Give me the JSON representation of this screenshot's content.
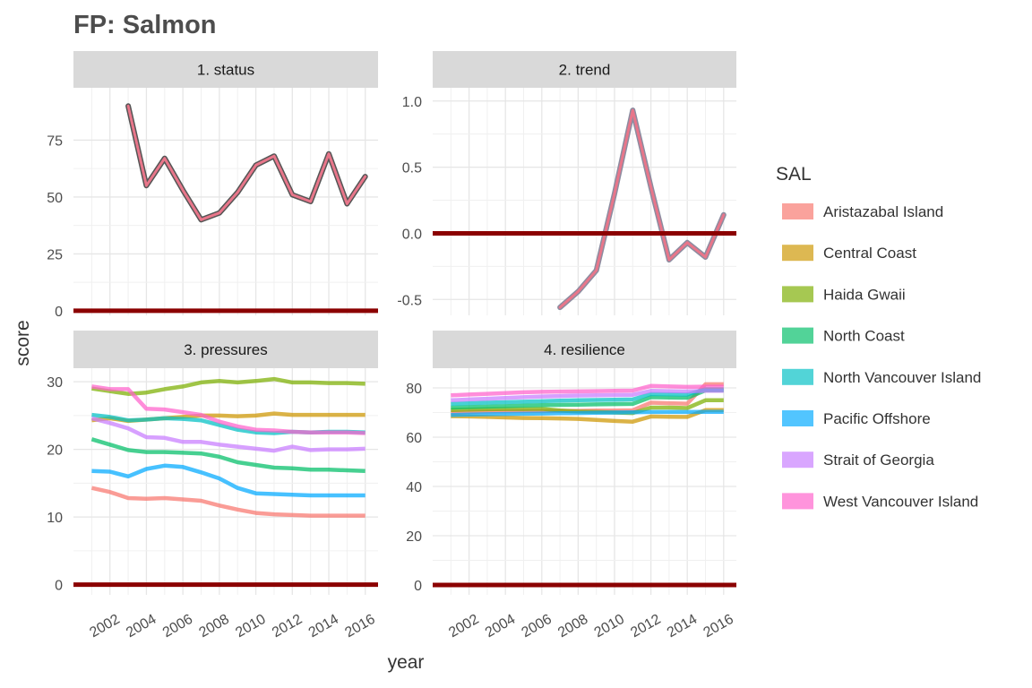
{
  "chart_data": {
    "title": "FP: Salmon",
    "xlabel": "year",
    "ylabel": "score",
    "legend": {
      "title": "SAL",
      "position": "right",
      "entries": [
        {
          "name": "Aristazabal Island",
          "color": "#F8766D"
        },
        {
          "name": "Central Coast",
          "color": "#CD9600"
        },
        {
          "name": "Haida Gwaii",
          "color": "#7CAE00"
        },
        {
          "name": "North Coast",
          "color": "#00BE67"
        },
        {
          "name": "North Vancouver Island",
          "color": "#00BFC4"
        },
        {
          "name": "Pacific Offshore",
          "color": "#00A9FF"
        },
        {
          "name": "Strait of Georgia",
          "color": "#C77CFF"
        },
        {
          "name": "West Vancouver Island",
          "color": "#FF61CC"
        }
      ]
    },
    "x_ticks": [
      "2002",
      "2004",
      "2006",
      "2008",
      "2010",
      "2012",
      "2014",
      "2016"
    ],
    "x_range": [
      2000.0,
      2016.7
    ],
    "reference_line": {
      "y": 0,
      "color": "#8B0000"
    },
    "panels": [
      {
        "label": "1. status",
        "type": "line",
        "ylim": [
          -2,
          98
        ],
        "y_ticks": [
          0,
          25,
          50,
          75
        ],
        "series": [
          {
            "name": "",
            "color": "#E8768A",
            "outline": "#555555",
            "x": [
              2003,
              2004,
              2005,
              2006,
              2007,
              2008,
              2009,
              2010,
              2011,
              2012,
              2013,
              2014,
              2015,
              2016
            ],
            "y": [
              90,
              55,
              67,
              53,
              40,
              43,
              52,
              64,
              68,
              51,
              48,
              69,
              47,
              59
            ]
          }
        ]
      },
      {
        "label": "2. trend",
        "type": "line",
        "ylim": [
          -0.62,
          1.1
        ],
        "y_ticks": [
          -0.5,
          0.0,
          0.5,
          1.0
        ],
        "series": [
          {
            "name": "",
            "color": "#E8768A",
            "outline": "#8C8CA0",
            "x": [
              2007,
              2008,
              2009,
              2010,
              2011,
              2012,
              2013,
              2014,
              2015,
              2016
            ],
            "y": [
              -0.56,
              -0.44,
              -0.28,
              0.3,
              0.93,
              0.35,
              -0.2,
              -0.07,
              -0.18,
              0.14
            ]
          }
        ]
      },
      {
        "label": "3. pressures",
        "type": "line",
        "ylim": [
          -1.5,
          32
        ],
        "y_ticks": [
          0,
          10,
          20,
          30
        ],
        "series": [
          {
            "name": "Aristazabal Island",
            "color": "#F8766D",
            "x": [
              2001,
              2002,
              2003,
              2004,
              2005,
              2006,
              2007,
              2008,
              2009,
              2010,
              2011,
              2012,
              2013,
              2014,
              2015,
              2016
            ],
            "y": [
              14.3,
              13.7,
              12.8,
              12.7,
              12.8,
              12.6,
              12.4,
              11.7,
              11.1,
              10.6,
              10.4,
              10.3,
              10.2,
              10.2,
              10.2,
              10.2
            ]
          },
          {
            "name": "Central Coast",
            "color": "#CD9600",
            "x": [
              2001,
              2002,
              2003,
              2004,
              2005,
              2006,
              2007,
              2008,
              2009,
              2010,
              2011,
              2012,
              2013,
              2014,
              2015,
              2016
            ],
            "y": [
              24.3,
              24.6,
              24.2,
              24.4,
              24.6,
              24.8,
              25.0,
              25.0,
              24.9,
              25.0,
              25.3,
              25.1,
              25.1,
              25.1,
              25.1,
              25.1
            ]
          },
          {
            "name": "Haida Gwaii",
            "color": "#7CAE00",
            "x": [
              2001,
              2002,
              2003,
              2004,
              2005,
              2006,
              2007,
              2008,
              2009,
              2010,
              2011,
              2012,
              2013,
              2014,
              2015,
              2016
            ],
            "y": [
              29.0,
              28.6,
              28.2,
              28.4,
              28.9,
              29.3,
              29.9,
              30.1,
              29.9,
              30.1,
              30.4,
              29.9,
              29.9,
              29.8,
              29.8,
              29.7
            ]
          },
          {
            "name": "North Coast",
            "color": "#00BE67",
            "x": [
              2001,
              2002,
              2003,
              2004,
              2005,
              2006,
              2007,
              2008,
              2009,
              2010,
              2011,
              2012,
              2013,
              2014,
              2015,
              2016
            ],
            "y": [
              21.5,
              20.7,
              19.9,
              19.6,
              19.6,
              19.5,
              19.4,
              18.9,
              18.1,
              17.7,
              17.3,
              17.2,
              17.0,
              17.0,
              16.9,
              16.8
            ]
          },
          {
            "name": "North Vancouver Island",
            "color": "#00BFC4",
            "x": [
              2001,
              2002,
              2003,
              2004,
              2005,
              2006,
              2007,
              2008,
              2009,
              2010,
              2011,
              2012,
              2013,
              2014,
              2015,
              2016
            ],
            "y": [
              25.1,
              24.8,
              24.3,
              24.4,
              24.6,
              24.5,
              24.3,
              23.6,
              22.9,
              22.5,
              22.4,
              22.6,
              22.5,
              22.6,
              22.6,
              22.5
            ]
          },
          {
            "name": "Pacific Offshore",
            "color": "#00A9FF",
            "x": [
              2001,
              2002,
              2003,
              2004,
              2005,
              2006,
              2007,
              2008,
              2009,
              2010,
              2011,
              2012,
              2013,
              2014,
              2015,
              2016
            ],
            "y": [
              16.8,
              16.7,
              16.0,
              17.1,
              17.6,
              17.4,
              16.6,
              15.7,
              14.3,
              13.5,
              13.4,
              13.3,
              13.2,
              13.2,
              13.2,
              13.2
            ]
          },
          {
            "name": "Strait of Georgia",
            "color": "#C77CFF",
            "x": [
              2001,
              2002,
              2003,
              2004,
              2005,
              2006,
              2007,
              2008,
              2009,
              2010,
              2011,
              2012,
              2013,
              2014,
              2015,
              2016
            ],
            "y": [
              24.6,
              23.9,
              23.1,
              21.8,
              21.7,
              21.1,
              21.1,
              20.7,
              20.4,
              20.1,
              19.8,
              20.4,
              19.9,
              20.0,
              20.0,
              20.1
            ]
          },
          {
            "name": "West Vancouver Island",
            "color": "#FF61CC",
            "x": [
              2001,
              2002,
              2003,
              2004,
              2005,
              2006,
              2007,
              2008,
              2009,
              2010,
              2011,
              2012,
              2013,
              2014,
              2015,
              2016
            ],
            "y": [
              29.3,
              28.9,
              28.9,
              26.0,
              25.9,
              25.5,
              25.1,
              24.1,
              23.4,
              22.9,
              22.8,
              22.6,
              22.5,
              22.5,
              22.5,
              22.4
            ]
          }
        ]
      },
      {
        "label": "4. resilience",
        "type": "line",
        "ylim": [
          -4,
          88
        ],
        "y_ticks": [
          0,
          20,
          40,
          60,
          80
        ],
        "series": [
          {
            "name": "Aristazabal Island",
            "color": "#F8766D",
            "x": [
              2001,
              2002,
              2003,
              2004,
              2005,
              2006,
              2007,
              2008,
              2009,
              2010,
              2011,
              2012,
              2013,
              2014,
              2015,
              2016
            ],
            "y": [
              70.0,
              70.2,
              70.4,
              70.5,
              70.6,
              70.6,
              70.7,
              70.7,
              70.8,
              70.8,
              70.9,
              74.0,
              73.8,
              73.6,
              81.5,
              81.5
            ]
          },
          {
            "name": "Central Coast",
            "color": "#CD9600",
            "x": [
              2001,
              2002,
              2003,
              2004,
              2005,
              2006,
              2007,
              2008,
              2009,
              2010,
              2011,
              2012,
              2013,
              2014,
              2015,
              2016
            ],
            "y": [
              68.5,
              68.4,
              68.2,
              68.0,
              67.8,
              67.7,
              67.6,
              67.4,
              67.0,
              66.6,
              66.3,
              68.4,
              68.3,
              68.2,
              71.0,
              71.0
            ]
          },
          {
            "name": "Haida Gwaii",
            "color": "#7CAE00",
            "x": [
              2001,
              2002,
              2003,
              2004,
              2005,
              2006,
              2007,
              2008,
              2009,
              2010,
              2011,
              2012,
              2013,
              2014,
              2015,
              2016
            ],
            "y": [
              71.0,
              71.2,
              71.3,
              71.4,
              71.4,
              71.5,
              70.8,
              70.4,
              70.2,
              70.0,
              69.8,
              72.0,
              72.0,
              71.8,
              75.0,
              75.0
            ]
          },
          {
            "name": "North Coast",
            "color": "#00BE67",
            "x": [
              2001,
              2002,
              2003,
              2004,
              2005,
              2006,
              2007,
              2008,
              2009,
              2010,
              2011,
              2012,
              2013,
              2014,
              2015,
              2016
            ],
            "y": [
              72.0,
              72.2,
              72.4,
              72.6,
              72.8,
              73.0,
              73.1,
              73.2,
              73.3,
              73.4,
              73.5,
              76.2,
              76.1,
              76.0,
              79.0,
              79.0
            ]
          },
          {
            "name": "North Vancouver Island",
            "color": "#00BFC4",
            "x": [
              2001,
              2002,
              2003,
              2004,
              2005,
              2006,
              2007,
              2008,
              2009,
              2010,
              2011,
              2012,
              2013,
              2014,
              2015,
              2016
            ],
            "y": [
              73.5,
              73.8,
              74.0,
              74.2,
              74.4,
              74.6,
              74.8,
              75.0,
              75.1,
              75.2,
              75.3,
              77.5,
              77.4,
              77.3,
              79.5,
              79.5
            ]
          },
          {
            "name": "Pacific Offshore",
            "color": "#00A9FF",
            "x": [
              2001,
              2002,
              2003,
              2004,
              2005,
              2006,
              2007,
              2008,
              2009,
              2010,
              2011,
              2012,
              2013,
              2014,
              2015,
              2016
            ],
            "y": [
              69.0,
              69.2,
              69.3,
              69.4,
              69.5,
              69.6,
              69.7,
              69.8,
              69.9,
              70.0,
              70.1,
              70.2,
              70.2,
              70.2,
              70.3,
              70.3
            ]
          },
          {
            "name": "Strait of Georgia",
            "color": "#C77CFF",
            "x": [
              2001,
              2002,
              2003,
              2004,
              2005,
              2006,
              2007,
              2008,
              2009,
              2010,
              2011,
              2012,
              2013,
              2014,
              2015,
              2016
            ],
            "y": [
              75.0,
              75.3,
              75.6,
              75.9,
              76.2,
              76.5,
              76.7,
              76.9,
              77.0,
              77.1,
              77.2,
              78.8,
              78.7,
              78.6,
              78.8,
              78.8
            ]
          },
          {
            "name": "West Vancouver Island",
            "color": "#FF61CC",
            "x": [
              2001,
              2002,
              2003,
              2004,
              2005,
              2006,
              2007,
              2008,
              2009,
              2010,
              2011,
              2012,
              2013,
              2014,
              2015,
              2016
            ],
            "y": [
              77.0,
              77.3,
              77.6,
              77.9,
              78.2,
              78.4,
              78.5,
              78.6,
              78.7,
              78.8,
              78.9,
              80.8,
              80.6,
              80.4,
              80.5,
              80.5
            ]
          }
        ]
      }
    ]
  }
}
